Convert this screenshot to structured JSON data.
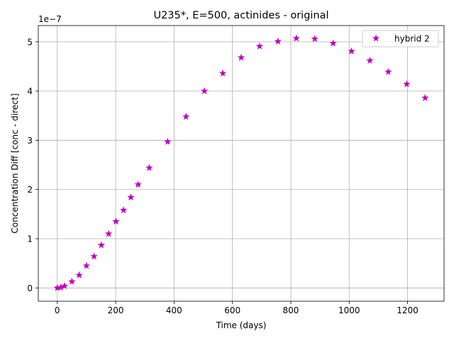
{
  "chart_data": {
    "type": "scatter",
    "title": "U235*, E=500, actinides - original",
    "xlabel": "Time (days)",
    "ylabel": "Concentration Diff [conc - direct]",
    "y_multiplier_label": "1e−7",
    "xlim": [
      -65,
      1325
    ],
    "ylim": [
      -0.27,
      5.33
    ],
    "x_ticks": [
      0,
      200,
      400,
      600,
      800,
      1000,
      1200
    ],
    "x_tick_labels": [
      "0",
      "200",
      "400",
      "600",
      "800",
      "1000",
      "1200"
    ],
    "y_ticks": [
      0,
      1,
      2,
      3,
      4,
      5
    ],
    "y_tick_labels": [
      "0",
      "1",
      "2",
      "3",
      "4",
      "5"
    ],
    "grid": true,
    "legend_position": "top-right",
    "series": [
      {
        "name": "hybrid 2",
        "marker": "star",
        "color": "#bf00bf",
        "x": [
          0,
          12,
          25,
          50,
          75,
          100,
          126,
          151,
          176,
          201,
          227,
          252,
          277,
          315,
          378,
          441,
          504,
          567,
          630,
          693,
          756,
          819,
          882,
          945,
          1008,
          1071,
          1134,
          1197,
          1260
        ],
        "y": [
          0.0,
          0.01,
          0.04,
          0.13,
          0.26,
          0.45,
          0.64,
          0.87,
          1.1,
          1.35,
          1.58,
          1.84,
          2.1,
          2.44,
          2.97,
          3.48,
          4.0,
          4.36,
          4.68,
          4.91,
          5.01,
          5.07,
          5.06,
          4.97,
          4.81,
          4.62,
          4.39,
          4.14,
          3.86
        ]
      }
    ]
  }
}
